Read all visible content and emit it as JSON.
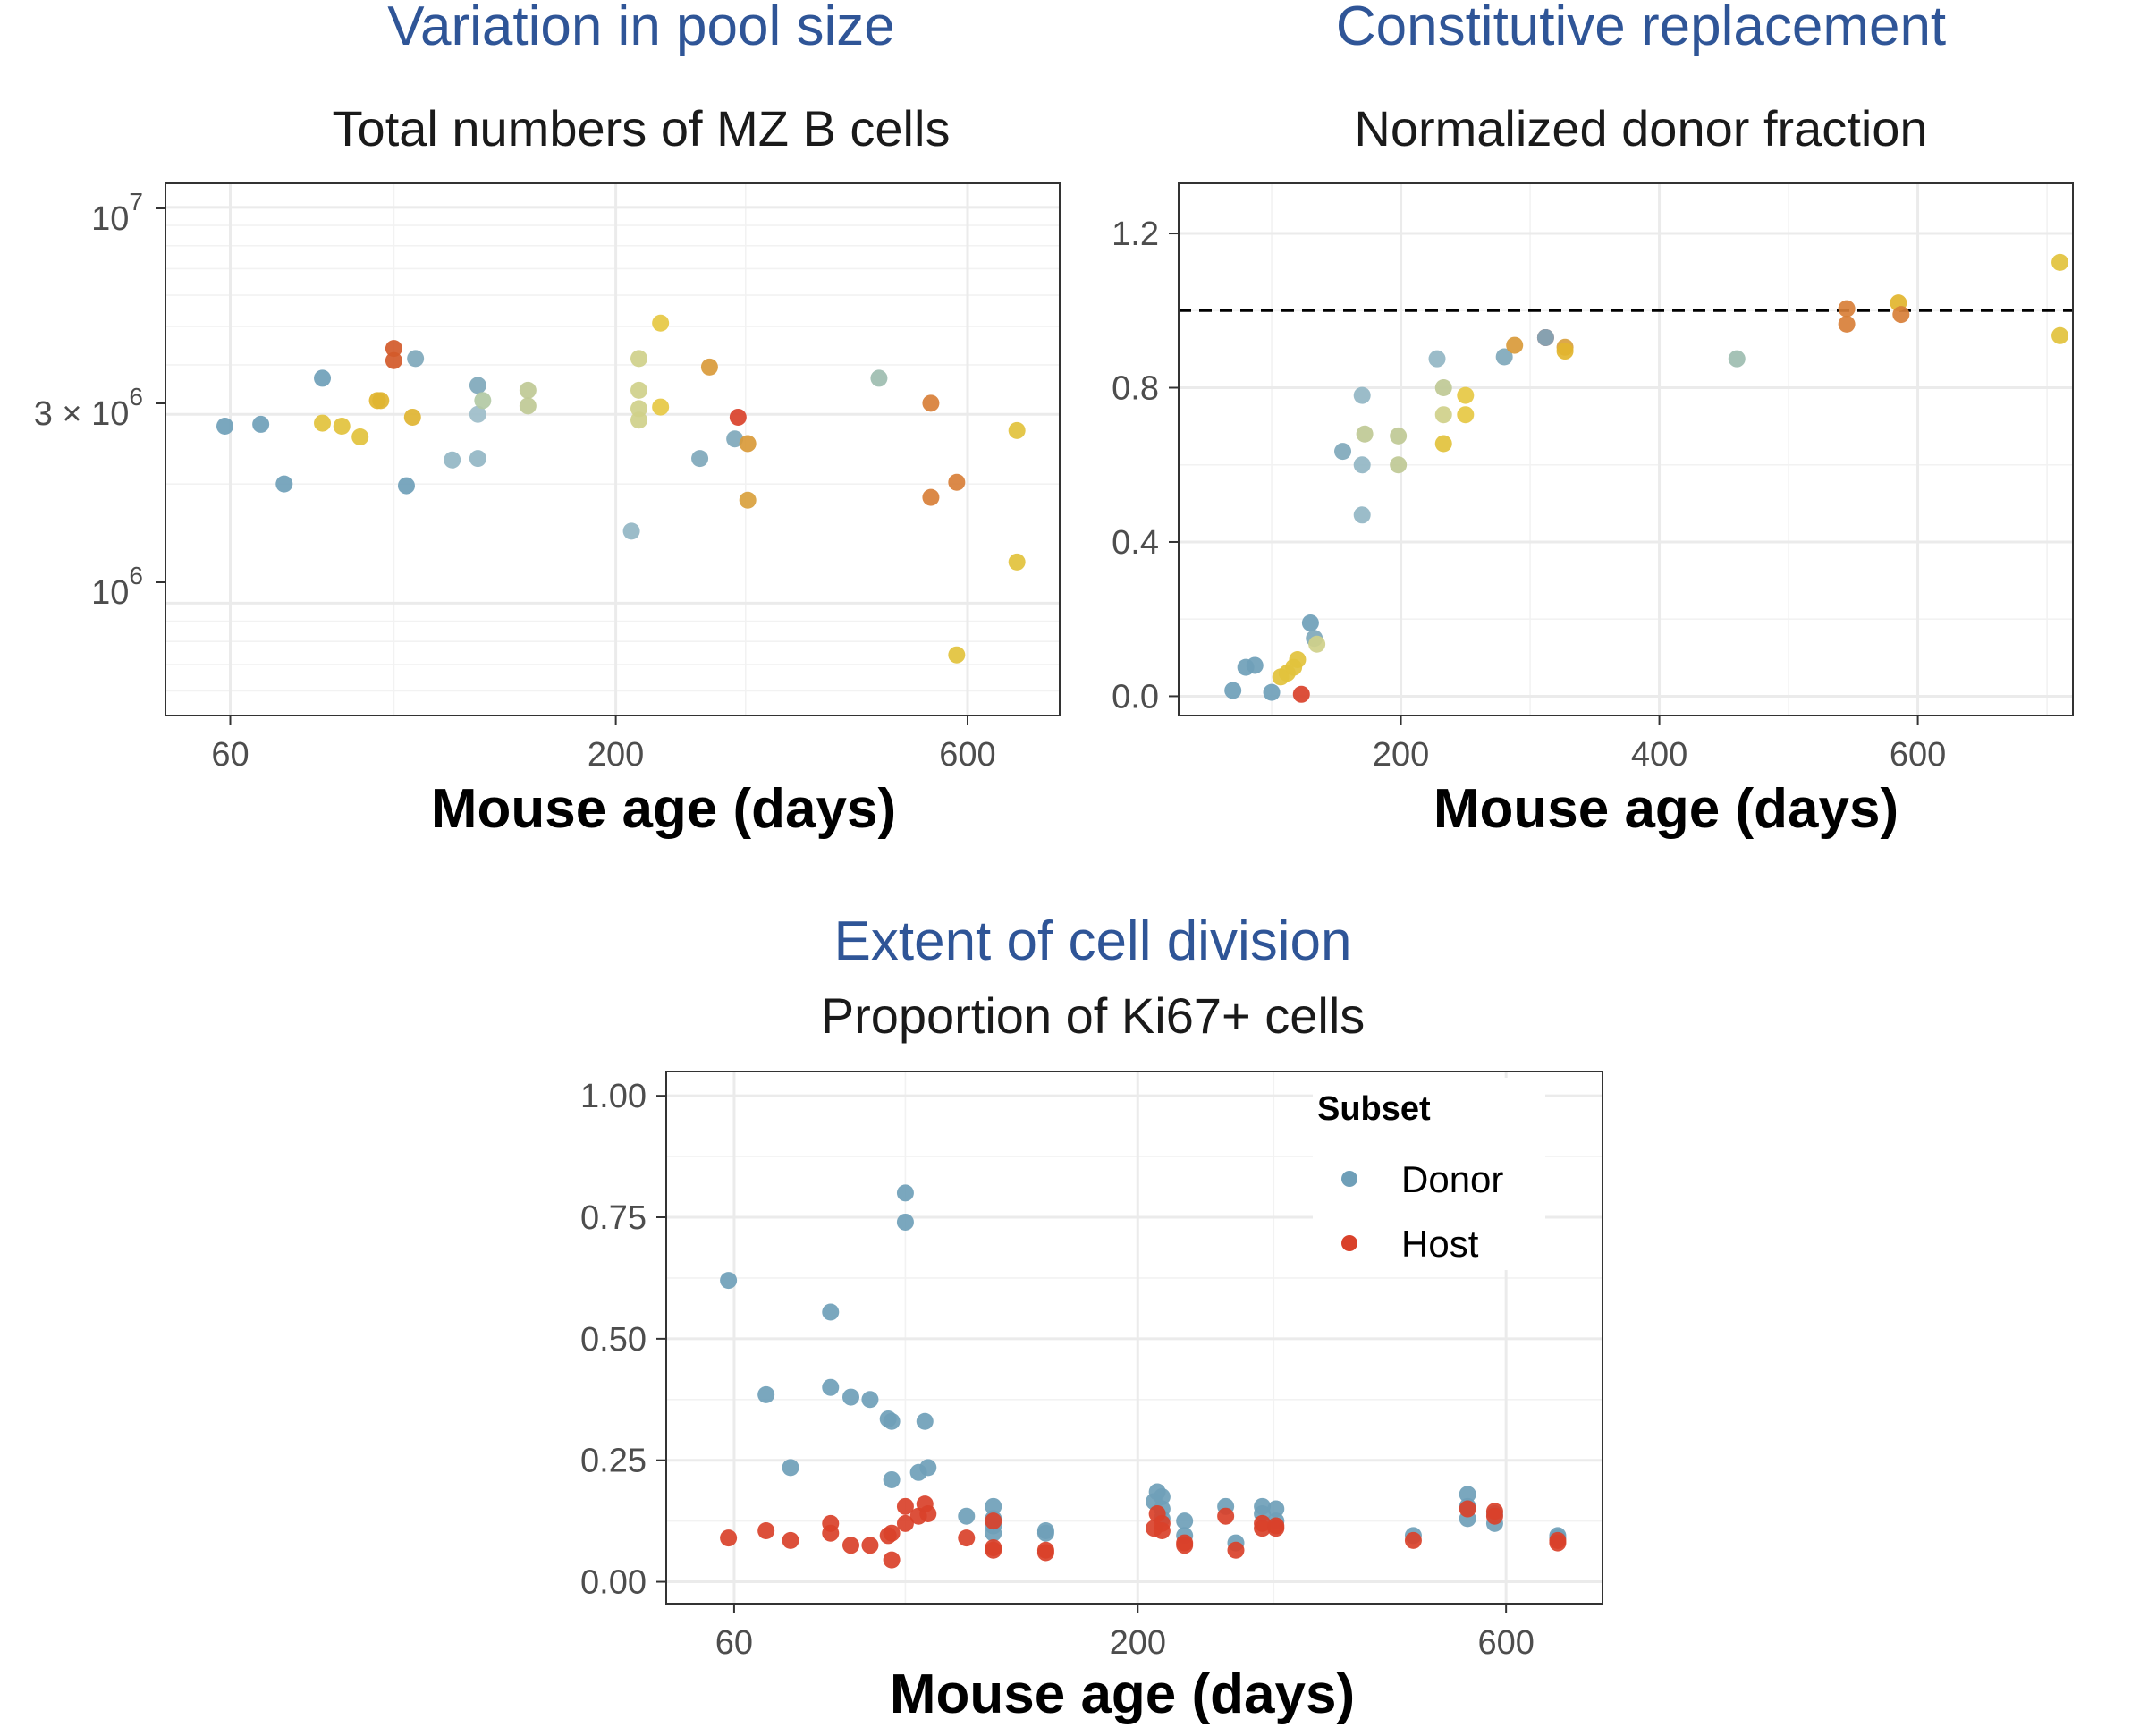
{
  "chart_data": [
    {
      "type": "scatter",
      "title": "Variation in pool size",
      "subtitle": "Total numbers of MZ B cells",
      "xlabel": "Mouse age (days)",
      "ylabel": "",
      "xscale": "log",
      "yscale": "log",
      "xlim": [
        49,
        800
      ],
      "ylim": [
        520000,
        11500000
      ],
      "xticks": [
        60,
        200,
        600
      ],
      "xtick_labels": [
        "60",
        "200",
        "600"
      ],
      "yticks": [
        1000000,
        3000000,
        10000000
      ],
      "ytick_labels": [
        "10^6",
        "3 × 10^6",
        "10^7"
      ],
      "grid": true,
      "points": [
        {
          "x": 59,
          "y": 2800000,
          "color": "#6f9fb8"
        },
        {
          "x": 66,
          "y": 2830000,
          "color": "#6f9fb8"
        },
        {
          "x": 71,
          "y": 2000000,
          "color": "#6f9fb8"
        },
        {
          "x": 80,
          "y": 3700000,
          "color": "#6f9fb8"
        },
        {
          "x": 80,
          "y": 2850000,
          "color": "#e2c23c"
        },
        {
          "x": 85,
          "y": 2800000,
          "color": "#e2c23c"
        },
        {
          "x": 90,
          "y": 2630000,
          "color": "#e2c23c"
        },
        {
          "x": 95,
          "y": 3250000,
          "color": "#e2b52e"
        },
        {
          "x": 96,
          "y": 3250000,
          "color": "#e0b431"
        },
        {
          "x": 100,
          "y": 4400000,
          "color": "#d35a2a"
        },
        {
          "x": 100,
          "y": 4100000,
          "color": "#d35a2a"
        },
        {
          "x": 104,
          "y": 1980000,
          "color": "#6f9fb8"
        },
        {
          "x": 106,
          "y": 2950000,
          "color": "#e0b431"
        },
        {
          "x": 107,
          "y": 4150000,
          "color": "#7fa8bb"
        },
        {
          "x": 120,
          "y": 2300000,
          "color": "#92b6c4"
        },
        {
          "x": 130,
          "y": 3550000,
          "color": "#7fa8bb"
        },
        {
          "x": 130,
          "y": 3000000,
          "color": "#9dbdc9"
        },
        {
          "x": 130,
          "y": 2320000,
          "color": "#92b6c4"
        },
        {
          "x": 132,
          "y": 3250000,
          "color": "#b2c9a4"
        },
        {
          "x": 152,
          "y": 3450000,
          "color": "#bfc995"
        },
        {
          "x": 152,
          "y": 3150000,
          "color": "#bfc995"
        },
        {
          "x": 210,
          "y": 1520000,
          "color": "#92b6c4"
        },
        {
          "x": 215,
          "y": 4150000,
          "color": "#cfd08a"
        },
        {
          "x": 215,
          "y": 3450000,
          "color": "#cfd08a"
        },
        {
          "x": 215,
          "y": 3100000,
          "color": "#cfd08a"
        },
        {
          "x": 215,
          "y": 2900000,
          "color": "#cfd08a"
        },
        {
          "x": 230,
          "y": 5100000,
          "color": "#e6c843"
        },
        {
          "x": 230,
          "y": 3130000,
          "color": "#e6c843"
        },
        {
          "x": 260,
          "y": 2320000,
          "color": "#7fa8bb"
        },
        {
          "x": 268,
          "y": 3950000,
          "color": "#d99a3a"
        },
        {
          "x": 290,
          "y": 2600000,
          "color": "#7fa8bb"
        },
        {
          "x": 293,
          "y": 2950000,
          "color": "#d9412a"
        },
        {
          "x": 302,
          "y": 2530000,
          "color": "#d99a3a"
        },
        {
          "x": 302,
          "y": 1820000,
          "color": "#d9a13d"
        },
        {
          "x": 455,
          "y": 3700000,
          "color": "#9dbdb0"
        },
        {
          "x": 535,
          "y": 3200000,
          "color": "#d87f38"
        },
        {
          "x": 535,
          "y": 1850000,
          "color": "#d87f38"
        },
        {
          "x": 580,
          "y": 2020000,
          "color": "#d87f38"
        },
        {
          "x": 580,
          "y": 740000,
          "color": "#e2c23c"
        },
        {
          "x": 700,
          "y": 2730000,
          "color": "#e2c23c"
        },
        {
          "x": 700,
          "y": 1270000,
          "color": "#e2c23c"
        }
      ]
    },
    {
      "type": "scatter",
      "title": "Constitutive replacement",
      "subtitle": "Normalized donor fraction",
      "xlabel": "Mouse age (days)",
      "ylabel": "",
      "xlim": [
        28,
        720
      ],
      "ylim": [
        -0.05,
        1.33
      ],
      "xticks": [
        200,
        400,
        600
      ],
      "xtick_labels": [
        "200",
        "400",
        "600"
      ],
      "yticks": [
        0.0,
        0.4,
        0.8,
        1.2
      ],
      "ytick_labels": [
        "0.0",
        "0.4",
        "0.8",
        "1.2"
      ],
      "reference_line": 1.0,
      "grid": true,
      "points": [
        {
          "x": 70,
          "y": 0.015,
          "color": "#6f9fb8"
        },
        {
          "x": 80,
          "y": 0.075,
          "color": "#6f9fb8"
        },
        {
          "x": 87,
          "y": 0.08,
          "color": "#6f9fb8"
        },
        {
          "x": 100,
          "y": 0.01,
          "color": "#6f9fb8"
        },
        {
          "x": 107,
          "y": 0.05,
          "color": "#e2c23c"
        },
        {
          "x": 112,
          "y": 0.06,
          "color": "#e2c23c"
        },
        {
          "x": 117,
          "y": 0.075,
          "color": "#e2c23c"
        },
        {
          "x": 120,
          "y": 0.095,
          "color": "#e2c23c"
        },
        {
          "x": 123,
          "y": 0.005,
          "color": "#d9412a"
        },
        {
          "x": 130,
          "y": 0.19,
          "color": "#6f9fb8"
        },
        {
          "x": 133,
          "y": 0.15,
          "color": "#7fa8bb"
        },
        {
          "x": 135,
          "y": 0.135,
          "color": "#cfd08a"
        },
        {
          "x": 155,
          "y": 0.635,
          "color": "#7fa8bb"
        },
        {
          "x": 170,
          "y": 0.78,
          "color": "#92b6c4"
        },
        {
          "x": 170,
          "y": 0.6,
          "color": "#92b6c4"
        },
        {
          "x": 170,
          "y": 0.47,
          "color": "#92b6c4"
        },
        {
          "x": 172,
          "y": 0.68,
          "color": "#bfc995"
        },
        {
          "x": 198,
          "y": 0.675,
          "color": "#bfc995"
        },
        {
          "x": 198,
          "y": 0.6,
          "color": "#bfc995"
        },
        {
          "x": 228,
          "y": 0.875,
          "color": "#92b6c4"
        },
        {
          "x": 233,
          "y": 0.8,
          "color": "#bfc995"
        },
        {
          "x": 233,
          "y": 0.73,
          "color": "#cfd08a"
        },
        {
          "x": 233,
          "y": 0.655,
          "color": "#e2c23c"
        },
        {
          "x": 250,
          "y": 0.78,
          "color": "#e6c843"
        },
        {
          "x": 250,
          "y": 0.73,
          "color": "#e6c843"
        },
        {
          "x": 280,
          "y": 0.88,
          "color": "#7fa8bb"
        },
        {
          "x": 288,
          "y": 0.91,
          "color": "#d99a3a"
        },
        {
          "x": 312,
          "y": 0.93,
          "color": "#d9412a"
        },
        {
          "x": 312,
          "y": 0.93,
          "color": "#7fa8bb"
        },
        {
          "x": 327,
          "y": 0.905,
          "color": "#d9a13d"
        },
        {
          "x": 327,
          "y": 0.895,
          "color": "#e2b52e"
        },
        {
          "x": 460,
          "y": 0.875,
          "color": "#9dbdb0"
        },
        {
          "x": 545,
          "y": 1.005,
          "color": "#d87f38"
        },
        {
          "x": 545,
          "y": 0.965,
          "color": "#d87f38"
        },
        {
          "x": 585,
          "y": 1.02,
          "color": "#e2b52e"
        },
        {
          "x": 587,
          "y": 0.99,
          "color": "#d87f38"
        },
        {
          "x": 710,
          "y": 1.125,
          "color": "#e2c23c"
        },
        {
          "x": 710,
          "y": 0.935,
          "color": "#e2c23c"
        }
      ]
    },
    {
      "type": "scatter",
      "title": "Extent of cell division",
      "subtitle": "Proportion of Ki67+ cells",
      "xlabel": "Mouse age (days)",
      "ylabel": "",
      "xscale": "log",
      "xlim": [
        49,
        800
      ],
      "ylim": [
        -0.045,
        1.05
      ],
      "xticks": [
        60,
        200,
        600
      ],
      "xtick_labels": [
        "60",
        "200",
        "600"
      ],
      "yticks": [
        0.0,
        0.25,
        0.5,
        0.75,
        1.0
      ],
      "ytick_labels": [
        "0.00",
        "0.25",
        "0.50",
        "0.75",
        "1.00"
      ],
      "grid": true,
      "legend": {
        "title": "Subset",
        "position": "top-right"
      },
      "series": [
        {
          "name": "Donor",
          "color": "#6f9fb8",
          "points": [
            [
              59,
              0.62
            ],
            [
              66,
              0.385
            ],
            [
              71,
              0.235
            ],
            [
              80,
              0.555
            ],
            [
              80,
              0.4
            ],
            [
              85,
              0.38
            ],
            [
              90,
              0.375
            ],
            [
              95,
              0.335
            ],
            [
              96,
              0.33
            ],
            [
              96,
              0.21
            ],
            [
              100,
              0.8
            ],
            [
              100,
              0.74
            ],
            [
              104,
              0.225
            ],
            [
              106,
              0.33
            ],
            [
              107,
              0.235
            ],
            [
              120,
              0.135
            ],
            [
              130,
              0.155
            ],
            [
              130,
              0.13
            ],
            [
              130,
              0.115
            ],
            [
              130,
              0.1
            ],
            [
              152,
              0.105
            ],
            [
              152,
              0.1
            ],
            [
              210,
              0.165
            ],
            [
              212,
              0.185
            ],
            [
              215,
              0.175
            ],
            [
              215,
              0.15
            ],
            [
              215,
              0.13
            ],
            [
              230,
              0.125
            ],
            [
              230,
              0.095
            ],
            [
              260,
              0.155
            ],
            [
              268,
              0.08
            ],
            [
              290,
              0.155
            ],
            [
              290,
              0.14
            ],
            [
              302,
              0.15
            ],
            [
              302,
              0.125
            ],
            [
              455,
              0.095
            ],
            [
              535,
              0.18
            ],
            [
              535,
              0.155
            ],
            [
              535,
              0.13
            ],
            [
              580,
              0.14
            ],
            [
              580,
              0.12
            ],
            [
              700,
              0.095
            ],
            [
              700,
              0.09
            ]
          ]
        },
        {
          "name": "Host",
          "color": "#d9412a",
          "points": [
            [
              59,
              0.09
            ],
            [
              66,
              0.105
            ],
            [
              71,
              0.085
            ],
            [
              80,
              0.12
            ],
            [
              80,
              0.1
            ],
            [
              85,
              0.075
            ],
            [
              90,
              0.075
            ],
            [
              95,
              0.095
            ],
            [
              96,
              0.1
            ],
            [
              96,
              0.045
            ],
            [
              100,
              0.155
            ],
            [
              100,
              0.12
            ],
            [
              104,
              0.135
            ],
            [
              106,
              0.16
            ],
            [
              107,
              0.14
            ],
            [
              120,
              0.09
            ],
            [
              130,
              0.125
            ],
            [
              130,
              0.07
            ],
            [
              130,
              0.065
            ],
            [
              152,
              0.065
            ],
            [
              152,
              0.06
            ],
            [
              210,
              0.11
            ],
            [
              212,
              0.14
            ],
            [
              215,
              0.12
            ],
            [
              215,
              0.105
            ],
            [
              230,
              0.08
            ],
            [
              230,
              0.075
            ],
            [
              260,
              0.135
            ],
            [
              268,
              0.065
            ],
            [
              290,
              0.12
            ],
            [
              290,
              0.11
            ],
            [
              302,
              0.115
            ],
            [
              302,
              0.11
            ],
            [
              455,
              0.085
            ],
            [
              535,
              0.15
            ],
            [
              580,
              0.145
            ],
            [
              580,
              0.135
            ],
            [
              700,
              0.085
            ],
            [
              700,
              0.08
            ]
          ]
        }
      ]
    }
  ]
}
